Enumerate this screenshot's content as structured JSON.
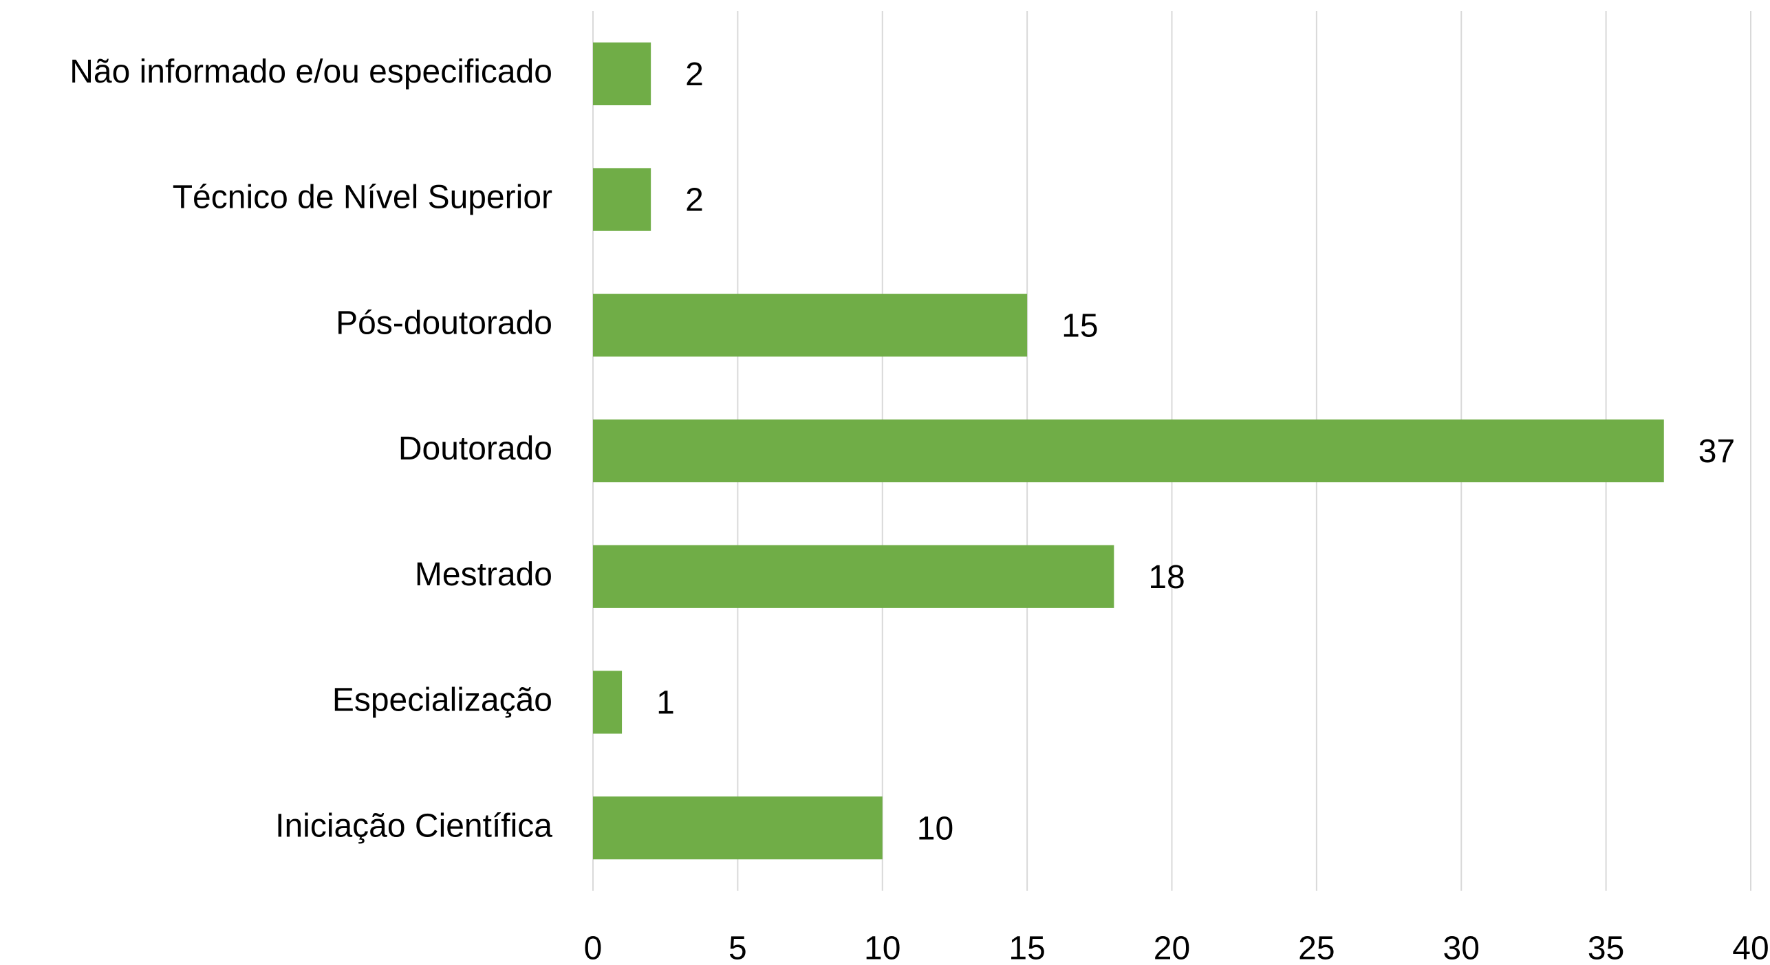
{
  "chart_data": {
    "type": "bar",
    "orientation": "horizontal",
    "categories": [
      "Não informado e/ou especificado",
      "Técnico de Nível Superior",
      "Pós-doutorado",
      "Doutorado",
      "Mestrado",
      "Especialização",
      "Iniciação Científica"
    ],
    "values": [
      2,
      2,
      15,
      37,
      18,
      1,
      10
    ],
    "color": "#70ad47",
    "xlim": [
      0,
      40
    ],
    "xticks": [
      0,
      5,
      10,
      15,
      20,
      25,
      30,
      35,
      40
    ],
    "grid": true
  }
}
